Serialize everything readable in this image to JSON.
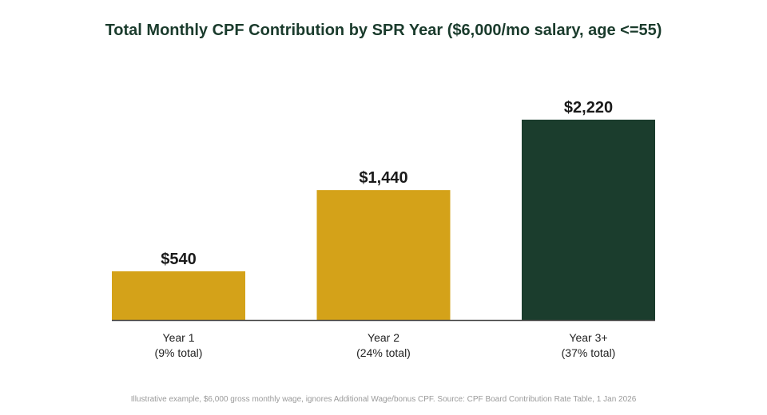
{
  "chart_data": {
    "type": "bar",
    "title": "Total Monthly CPF Contribution by SPR Year ($6,000/mo salary, age <=55)",
    "categories": [
      "Year 1",
      "Year 2",
      "Year 3+"
    ],
    "sublabels": [
      "(9% total)",
      "(24% total)",
      "(37% total)"
    ],
    "values": [
      540,
      1440,
      2220
    ],
    "value_labels": [
      "$540",
      "$1,440",
      "$2,220"
    ],
    "colors": [
      "#d4a219",
      "#d4a219",
      "#1b3d2d"
    ],
    "xlabel": "",
    "ylabel": "",
    "ylim": [
      0,
      2520
    ],
    "grid": false
  },
  "footnote": "Illustrative example, $6,000 gross monthly wage, ignores Additional Wage/bonus CPF. Source: CPF Board Contribution Rate Table, 1 Jan 2026"
}
